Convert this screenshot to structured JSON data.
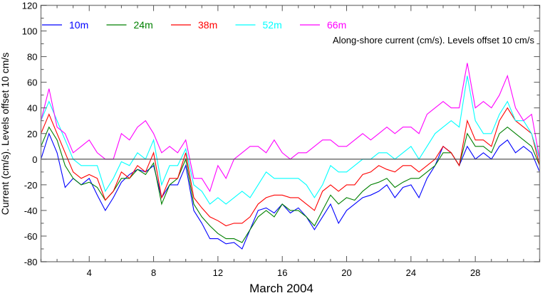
{
  "chart_data": {
    "type": "line",
    "title": "Along-shore current (cm/s). Levels offset 10 cm/s",
    "xlabel": "March 2004",
    "ylabel": "Current (cm/s). Levels offset 10 cm/s",
    "xlim": [
      1,
      32
    ],
    "ylim": [
      -80,
      120
    ],
    "xticks": [
      4,
      8,
      12,
      16,
      20,
      24,
      28
    ],
    "yticks": [
      -80,
      -60,
      -40,
      -20,
      0,
      20,
      40,
      60,
      80,
      100,
      120
    ],
    "grid": false,
    "zero_line": true,
    "legend_placement": "top-left",
    "x": [
      1,
      1.5,
      2,
      2.5,
      3,
      3.5,
      4,
      4.5,
      5,
      5.5,
      6,
      6.5,
      7,
      7.5,
      8,
      8.5,
      9,
      9.5,
      10,
      10.5,
      11,
      11.5,
      12,
      12.5,
      13,
      13.5,
      14,
      14.5,
      15,
      15.5,
      16,
      16.5,
      17,
      17.5,
      18,
      18.5,
      19,
      19.5,
      20,
      20.5,
      21,
      21.5,
      22,
      22.5,
      23,
      23.5,
      24,
      24.5,
      25,
      25.5,
      26,
      26.5,
      27,
      27.5,
      28,
      28.5,
      29,
      29.5,
      30,
      30.5,
      31,
      31.5,
      32
    ],
    "series": [
      {
        "name": "10m",
        "color": "#0000ff",
        "values": [
          0,
          20,
          5,
          -22,
          -15,
          -20,
          -15,
          -28,
          -40,
          -30,
          -18,
          -12,
          -8,
          -10,
          -5,
          -30,
          -20,
          -20,
          -5,
          -40,
          -50,
          -62,
          -62,
          -66,
          -65,
          -70,
          -55,
          -40,
          -38,
          -42,
          -35,
          -42,
          -38,
          -45,
          -55,
          -45,
          -35,
          -50,
          -40,
          -35,
          -30,
          -28,
          -25,
          -20,
          -30,
          -22,
          -20,
          -30,
          -15,
          -5,
          10,
          5,
          -5,
          10,
          0,
          5,
          0,
          10,
          15,
          5,
          10,
          5,
          -10
        ]
      },
      {
        "name": "24m",
        "color": "#008000",
        "values": [
          10,
          25,
          15,
          -5,
          -15,
          -20,
          -18,
          -22,
          -32,
          -25,
          -15,
          -15,
          -8,
          -12,
          -3,
          -35,
          -20,
          -15,
          0,
          -35,
          -45,
          -52,
          -58,
          -62,
          -62,
          -65,
          -55,
          -45,
          -40,
          -45,
          -35,
          -40,
          -40,
          -45,
          -52,
          -40,
          -28,
          -35,
          -30,
          -32,
          -25,
          -20,
          -18,
          -15,
          -22,
          -18,
          -15,
          -15,
          -10,
          -5,
          5,
          5,
          -5,
          20,
          10,
          10,
          5,
          20,
          25,
          20,
          15,
          10,
          -5
        ]
      },
      {
        "name": "38m",
        "color": "#ff0000",
        "values": [
          20,
          35,
          20,
          5,
          -10,
          -15,
          -12,
          -15,
          -32,
          -25,
          -10,
          -15,
          -5,
          -10,
          5,
          -30,
          -15,
          -15,
          5,
          -30,
          -38,
          -45,
          -48,
          -52,
          -50,
          -50,
          -45,
          -35,
          -30,
          -28,
          -28,
          -30,
          -30,
          -35,
          -40,
          -25,
          -20,
          -25,
          -20,
          -20,
          -12,
          -10,
          -5,
          -8,
          -10,
          -5,
          -5,
          -10,
          -5,
          0,
          10,
          5,
          -5,
          30,
          15,
          15,
          10,
          30,
          40,
          30,
          25,
          20,
          -5
        ]
      },
      {
        "name": "52m",
        "color": "#00ffff",
        "values": [
          30,
          45,
          30,
          15,
          0,
          -5,
          -5,
          -5,
          -25,
          -15,
          -2,
          -5,
          5,
          0,
          15,
          -20,
          -5,
          -5,
          8,
          -20,
          -25,
          -35,
          -30,
          -35,
          -30,
          -25,
          -30,
          -20,
          -10,
          -15,
          -15,
          -15,
          -15,
          -20,
          -30,
          -20,
          -5,
          -10,
          -10,
          -5,
          0,
          0,
          5,
          5,
          0,
          5,
          10,
          0,
          10,
          20,
          25,
          30,
          25,
          65,
          30,
          20,
          20,
          35,
          45,
          30,
          30,
          20,
          0
        ]
      },
      {
        "name": "66m",
        "color": "#ff00ff",
        "values": [
          30,
          55,
          25,
          20,
          5,
          10,
          15,
          5,
          0,
          0,
          20,
          15,
          25,
          30,
          20,
          5,
          10,
          5,
          15,
          -15,
          -15,
          -25,
          -5,
          -15,
          0,
          5,
          10,
          10,
          5,
          15,
          5,
          0,
          5,
          5,
          10,
          15,
          15,
          10,
          10,
          15,
          20,
          15,
          20,
          25,
          20,
          25,
          25,
          20,
          35,
          40,
          45,
          40,
          40,
          75,
          40,
          45,
          40,
          50,
          65,
          40,
          30,
          35,
          0
        ]
      }
    ]
  }
}
